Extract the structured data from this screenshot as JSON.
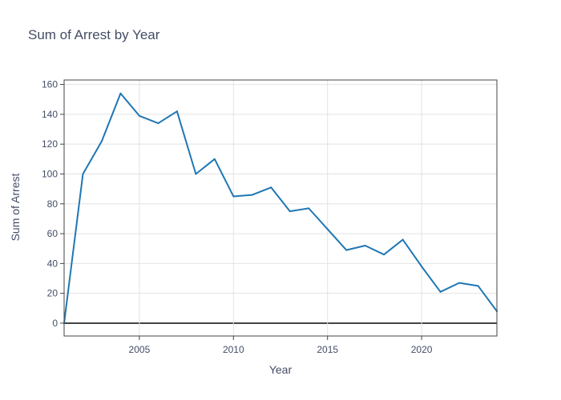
{
  "chart_data": {
    "type": "line",
    "title": "Sum of Arrest by Year",
    "xlabel": "Year",
    "ylabel": "Sum of Arrest",
    "xlim": [
      2001,
      2024
    ],
    "ylim": [
      -8.6,
      163
    ],
    "x_ticks": [
      2005,
      2010,
      2015,
      2020
    ],
    "y_ticks": [
      0,
      20,
      40,
      60,
      80,
      100,
      120,
      140,
      160
    ],
    "grid": true,
    "legend": "none",
    "line_color": "#1f77b4",
    "series": [
      {
        "x": [
          2001,
          2002,
          2003,
          2004,
          2005,
          2006,
          2007,
          2008,
          2009,
          2010,
          2011,
          2012,
          2013,
          2014,
          2015,
          2016,
          2017,
          2018,
          2019,
          2020,
          2021,
          2022,
          2023,
          2024
        ],
        "values": [
          0,
          100,
          122,
          154,
          139,
          134,
          142,
          100,
          110,
          85,
          86,
          91,
          75,
          77,
          63,
          49,
          52,
          46,
          56,
          38,
          21,
          27,
          25,
          8
        ]
      }
    ]
  }
}
